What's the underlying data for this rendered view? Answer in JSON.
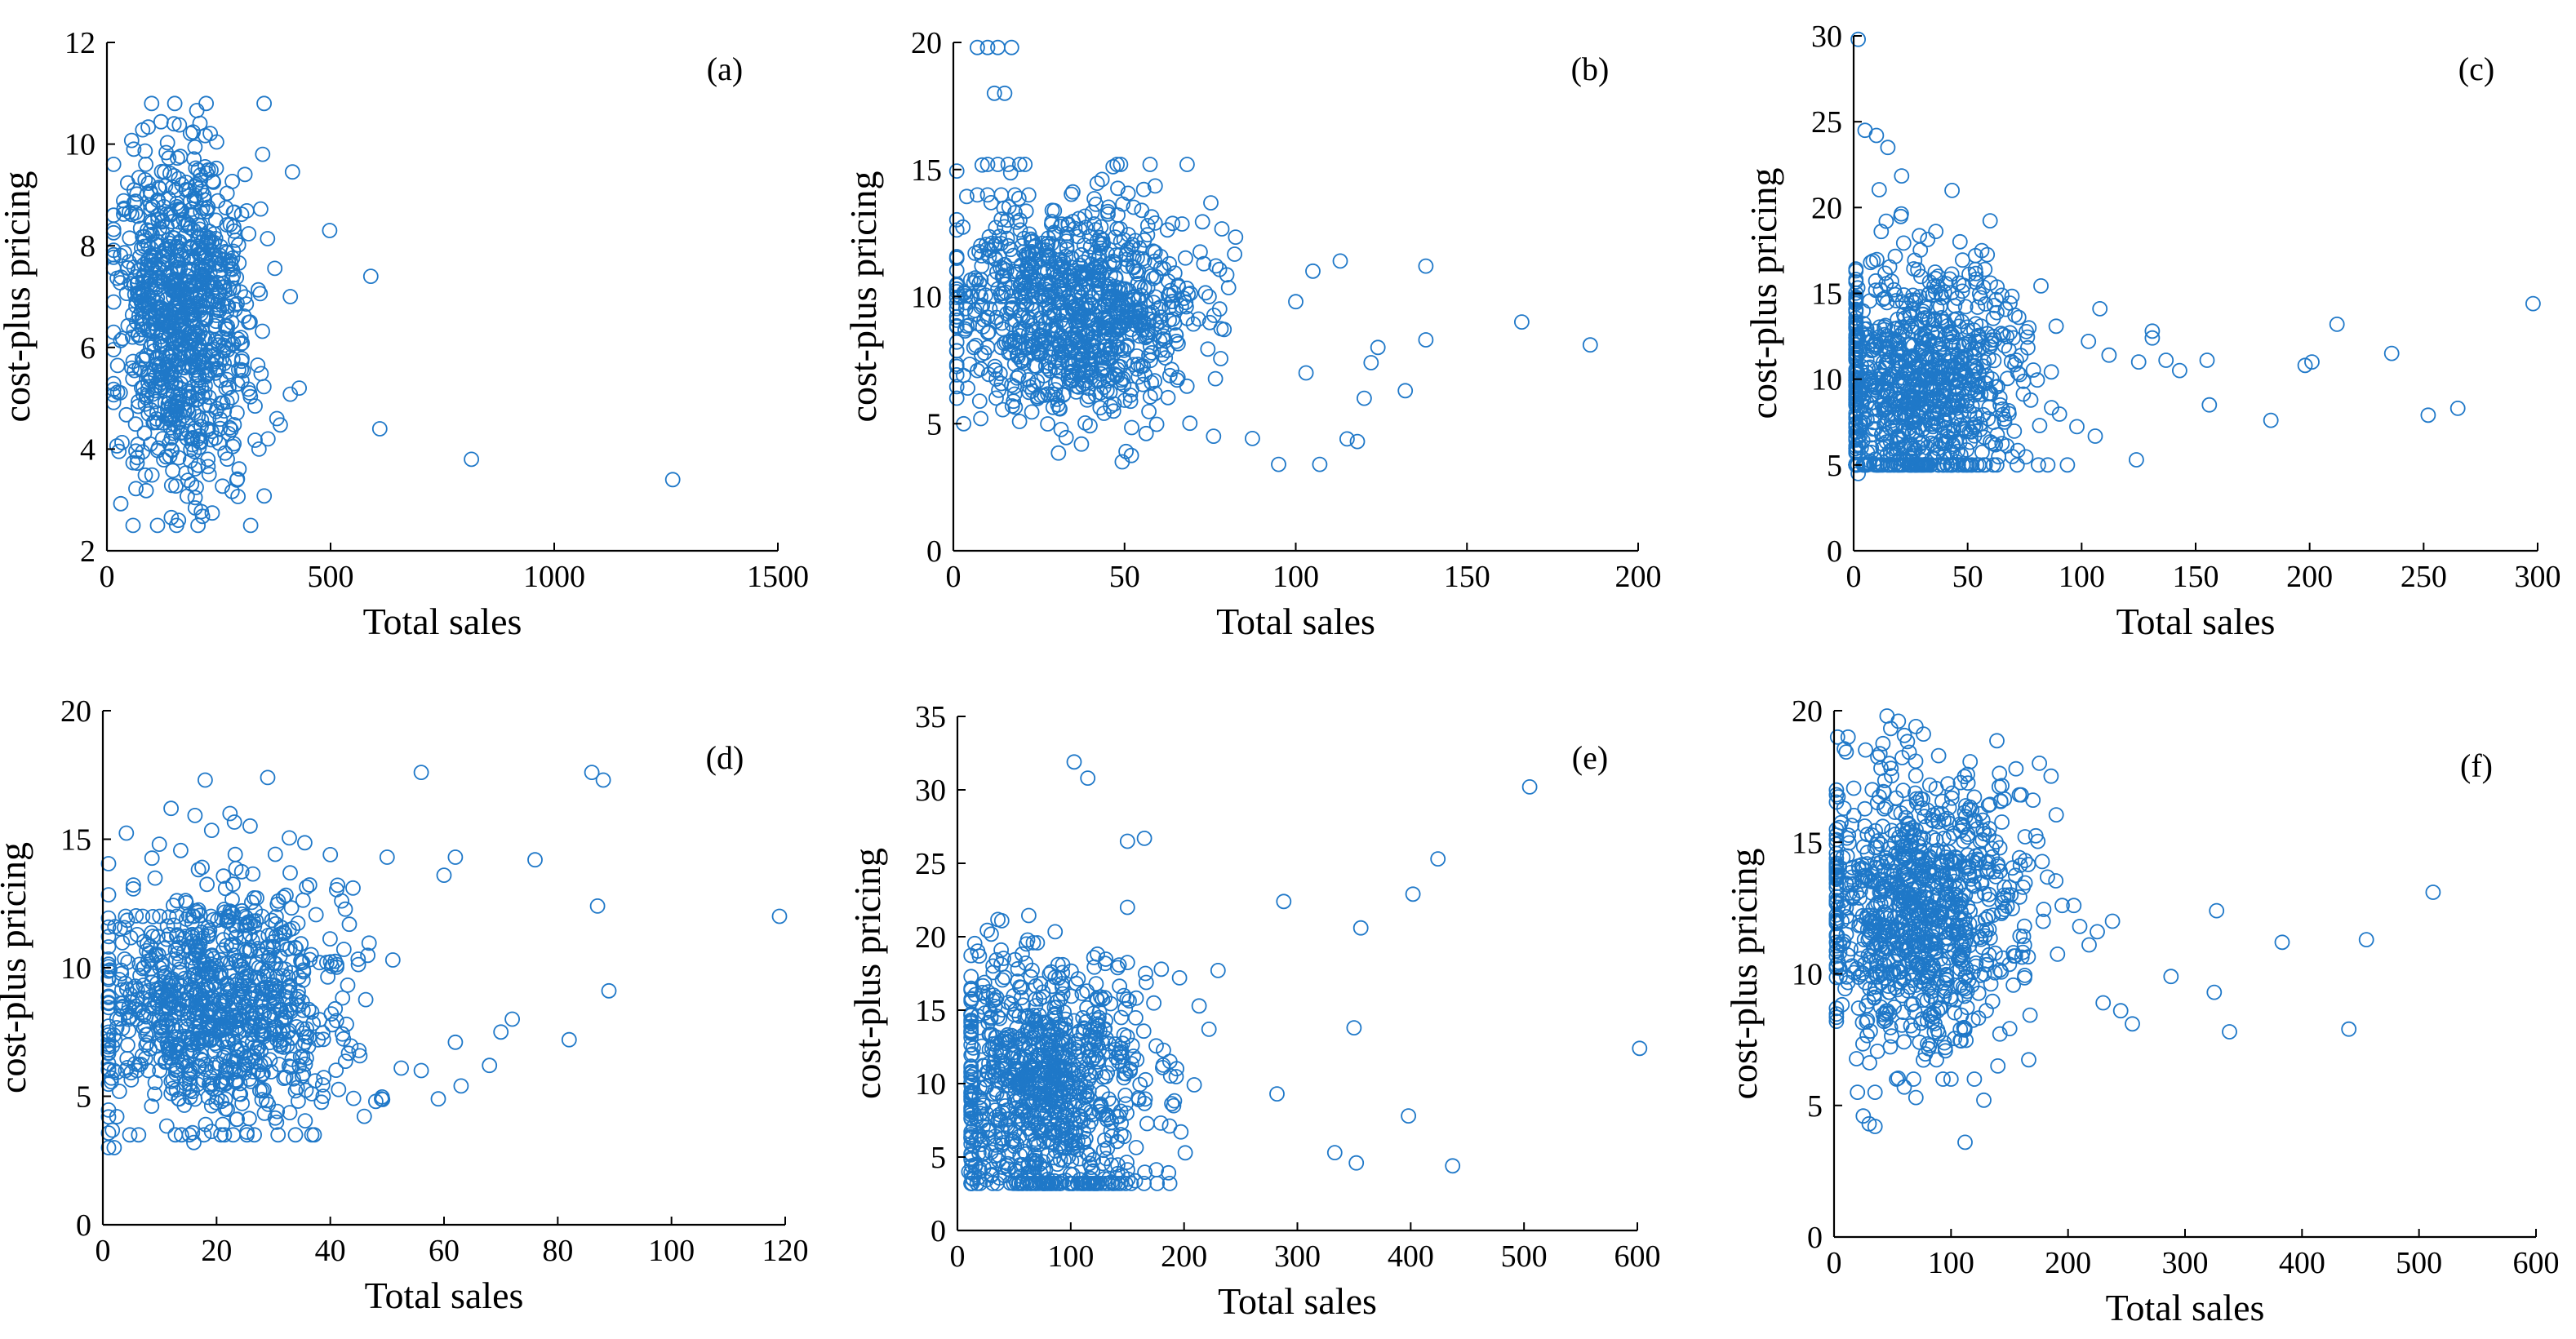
{
  "figure": {
    "marker_color": "#1f78c8",
    "axis_color": "#000000"
  },
  "chart_data": [
    {
      "type": "scatter",
      "label": "(a)",
      "xlabel": "Total sales",
      "ylabel": "cost-plus pricing",
      "xlim": [
        0,
        1500
      ],
      "ylim": [
        2,
        12
      ],
      "xticks": [
        0,
        500,
        1000,
        1500
      ],
      "yticks": [
        2,
        4,
        6,
        8,
        10,
        12
      ],
      "xtick_labels": [
        "0",
        "500",
        "1000",
        "1500"
      ],
      "ytick_labels": [
        "2",
        "4",
        "6",
        "8",
        "10",
        "12"
      ],
      "cluster": {
        "n": 950,
        "x_center": 170,
        "x_spread": 75,
        "x_min": 15,
        "x_max": 420,
        "y_center": 6.5,
        "y_spread": 1.6,
        "y_min": 2.5,
        "y_max": 10.8
      },
      "points": [
        [
          498,
          8.3
        ],
        [
          590,
          7.4
        ],
        [
          610,
          4.4
        ],
        [
          815,
          3.8
        ],
        [
          1265,
          3.4
        ],
        [
          430,
          5.2
        ],
        [
          410,
          7.0
        ],
        [
          100,
          10.8
        ],
        [
          150,
          10.4
        ],
        [
          60,
          9.9
        ],
        [
          360,
          4.2
        ],
        [
          340,
          4.0
        ],
        [
          320,
          6.5
        ],
        [
          380,
          4.6
        ],
        [
          160,
          2.6
        ]
      ]
    },
    {
      "type": "scatter",
      "label": "(b)",
      "xlabel": "Total sales",
      "ylabel": "cost-plus pricing",
      "xlim": [
        0,
        200
      ],
      "ylim": [
        0,
        20
      ],
      "xticks": [
        0,
        50,
        100,
        150,
        200
      ],
      "yticks": [
        0,
        5,
        10,
        15,
        20
      ],
      "xtick_labels": [
        "0",
        "50",
        "100",
        "150",
        "200"
      ],
      "ytick_labels": [
        "0",
        "5",
        "10",
        "15",
        "20"
      ],
      "cluster": {
        "n": 950,
        "x_center": 35,
        "x_spread": 18,
        "x_min": 1,
        "x_max": 95,
        "y_center": 9.5,
        "y_spread": 2.2,
        "y_min": 3.5,
        "y_max": 15.2
      },
      "points": [
        [
          7,
          19.8
        ],
        [
          10,
          19.8
        ],
        [
          13,
          19.8
        ],
        [
          17,
          19.8
        ],
        [
          12,
          18.0
        ],
        [
          15,
          18.0
        ],
        [
          10,
          15.2
        ],
        [
          13,
          15.2
        ],
        [
          16,
          15.2
        ],
        [
          7,
          14.0
        ],
        [
          10,
          14.0
        ],
        [
          14,
          14.0
        ],
        [
          18,
          14.0
        ],
        [
          22,
          14.0
        ],
        [
          8,
          12.0
        ],
        [
          12,
          12.0
        ],
        [
          16,
          12.0
        ],
        [
          20,
          12.0
        ],
        [
          24,
          12.0
        ],
        [
          2,
          10.0
        ],
        [
          5,
          10.0
        ],
        [
          8,
          10.0
        ],
        [
          11,
          10.0
        ],
        [
          14,
          10.0
        ],
        [
          17,
          10.0
        ],
        [
          20,
          10.0
        ],
        [
          23,
          10.0
        ],
        [
          26,
          10.0
        ],
        [
          29,
          10.0
        ],
        [
          6,
          8.0
        ],
        [
          10,
          8.0
        ],
        [
          14,
          8.0
        ],
        [
          18,
          8.0
        ],
        [
          22,
          8.0
        ],
        [
          166,
          9.0
        ],
        [
          186,
          8.1
        ],
        [
          138,
          11.2
        ],
        [
          138,
          8.3
        ],
        [
          132,
          6.3
        ],
        [
          113,
          11.4
        ],
        [
          115,
          4.4
        ],
        [
          118,
          4.3
        ],
        [
          107,
          3.4
        ],
        [
          95,
          3.4
        ],
        [
          122,
          7.4
        ],
        [
          124,
          8.0
        ],
        [
          120,
          6.0
        ],
        [
          103,
          7.0
        ],
        [
          100,
          9.8
        ],
        [
          105,
          11.0
        ],
        [
          3,
          5.0
        ],
        [
          8,
          5.2
        ]
      ]
    },
    {
      "type": "scatter",
      "label": "(c)",
      "xlabel": "Total sales",
      "ylabel": "cost-plus pricing",
      "xlim": [
        0,
        300
      ],
      "ylim": [
        0,
        30
      ],
      "xticks": [
        0,
        50,
        100,
        150,
        200,
        250,
        300
      ],
      "yticks": [
        0,
        5,
        10,
        15,
        20,
        25,
        30
      ],
      "xtick_labels": [
        "0",
        "50",
        "100",
        "150",
        "200",
        "250",
        "300"
      ],
      "ytick_labels": [
        "0",
        "5",
        "10",
        "15",
        "20",
        "25",
        "30"
      ],
      "cluster": {
        "n": 950,
        "x_center": 30,
        "x_spread": 22,
        "x_min": 1,
        "x_max": 110,
        "y_center": 9.5,
        "y_spread": 3.5,
        "y_min": 5.0,
        "y_max": 25.0
      },
      "points": [
        [
          2,
          29.8
        ],
        [
          298,
          14.4
        ],
        [
          265,
          8.3
        ],
        [
          252,
          7.9
        ],
        [
          236,
          11.5
        ],
        [
          212,
          13.2
        ],
        [
          201,
          11.0
        ],
        [
          198,
          10.8
        ],
        [
          183,
          7.6
        ],
        [
          156,
          8.5
        ],
        [
          155,
          11.1
        ],
        [
          143,
          10.5
        ],
        [
          131,
          12.4
        ],
        [
          131,
          12.8
        ],
        [
          124,
          5.3
        ],
        [
          125,
          11.0
        ],
        [
          137,
          11.1
        ],
        [
          112,
          11.4
        ],
        [
          108,
          14.1
        ],
        [
          103,
          12.2
        ],
        [
          2,
          4.5
        ],
        [
          5,
          24.5
        ],
        [
          10,
          24.2
        ],
        [
          15,
          23.5
        ]
      ]
    },
    {
      "type": "scatter",
      "label": "(d)",
      "xlabel": "Total sales",
      "ylabel": "cost-plus pricing",
      "xlim": [
        0,
        120
      ],
      "ylim": [
        0,
        20
      ],
      "xticks": [
        0,
        20,
        40,
        60,
        80,
        100,
        120
      ],
      "yticks": [
        0,
        5,
        10,
        15,
        20
      ],
      "xtick_labels": [
        "0",
        "20",
        "40",
        "60",
        "80",
        "100",
        "120"
      ],
      "ytick_labels": [
        "0",
        "5",
        "10",
        "15",
        "20"
      ],
      "cluster": {
        "n": 950,
        "x_center": 20,
        "x_spread": 11,
        "x_min": 1,
        "x_max": 55,
        "y_center": 8.5,
        "y_spread": 2.3,
        "y_min": 3.5,
        "y_max": 16.0
      },
      "points": [
        [
          1,
          3.0
        ],
        [
          2,
          3.0
        ],
        [
          16,
          3.2
        ],
        [
          119,
          12.0
        ],
        [
          89,
          9.1
        ],
        [
          87,
          12.4
        ],
        [
          88,
          17.3
        ],
        [
          86,
          17.6
        ],
        [
          82,
          7.2
        ],
        [
          76,
          14.2
        ],
        [
          72,
          8.0
        ],
        [
          70,
          7.5
        ],
        [
          68,
          6.2
        ],
        [
          62,
          14.3
        ],
        [
          60,
          13.6
        ],
        [
          63,
          5.4
        ],
        [
          62,
          7.1
        ],
        [
          59,
          4.9
        ],
        [
          56,
          17.6
        ],
        [
          56,
          6.0
        ],
        [
          50,
          14.3
        ],
        [
          51,
          10.3
        ],
        [
          48,
          4.8
        ],
        [
          49,
          4.9
        ],
        [
          44,
          13.1
        ],
        [
          42,
          12.6
        ],
        [
          40,
          14.4
        ],
        [
          29,
          17.4
        ],
        [
          18,
          17.3
        ],
        [
          12,
          16.2
        ],
        [
          2,
          6.0
        ],
        [
          4,
          6.0
        ],
        [
          6,
          6.0
        ],
        [
          8,
          6.0
        ],
        [
          10,
          6.0
        ],
        [
          3,
          8.0
        ],
        [
          6,
          8.0
        ],
        [
          9,
          8.0
        ],
        [
          12,
          8.0
        ],
        [
          15,
          8.0
        ],
        [
          4,
          12.0
        ],
        [
          7,
          12.0
        ],
        [
          10,
          12.0
        ],
        [
          13,
          12.0
        ],
        [
          16,
          12.0
        ],
        [
          19,
          12.0
        ],
        [
          22,
          12.0
        ],
        [
          25,
          12.0
        ],
        [
          28,
          12.0
        ]
      ]
    },
    {
      "type": "scatter",
      "label": "(e)",
      "xlabel": "Total sales",
      "ylabel": "cost-plus pricing",
      "xlim": [
        0,
        600
      ],
      "ylim": [
        0,
        35
      ],
      "xticks": [
        0,
        100,
        200,
        300,
        400,
        500,
        600
      ],
      "yticks": [
        0,
        5,
        10,
        15,
        20,
        25,
        30,
        35
      ],
      "xtick_labels": [
        "0",
        "100",
        "200",
        "300",
        "400",
        "500",
        "600"
      ],
      "ytick_labels": [
        "0",
        "5",
        "10",
        "15",
        "20",
        "25",
        "30",
        "35"
      ],
      "cluster": {
        "n": 950,
        "x_center": 75,
        "x_spread": 45,
        "x_min": 12,
        "x_max": 230,
        "y_center": 9.5,
        "y_spread": 4.5,
        "y_min": 3.2,
        "y_max": 26.0
      },
      "points": [
        [
          103,
          31.9
        ],
        [
          115,
          30.8
        ],
        [
          505,
          30.2
        ],
        [
          424,
          25.3
        ],
        [
          402,
          22.9
        ],
        [
          356,
          20.6
        ],
        [
          288,
          22.4
        ],
        [
          350,
          13.8
        ],
        [
          398,
          7.8
        ],
        [
          282,
          9.3
        ],
        [
          333,
          5.3
        ],
        [
          352,
          4.6
        ],
        [
          437,
          4.4
        ],
        [
          602,
          12.4
        ],
        [
          230,
          17.7
        ],
        [
          222,
          13.7
        ],
        [
          196,
          17.2
        ],
        [
          150,
          26.5
        ],
        [
          165,
          26.7
        ],
        [
          150,
          22.0
        ],
        [
          10,
          4.0
        ],
        [
          15,
          3.8
        ],
        [
          20,
          4.0
        ]
      ]
    },
    {
      "type": "scatter",
      "label": "(f)",
      "xlabel": "Total sales",
      "ylabel": "cost-plus pricing",
      "xlim": [
        0,
        600
      ],
      "ylim": [
        0,
        20
      ],
      "xticks": [
        0,
        100,
        200,
        300,
        400,
        500,
        600
      ],
      "yticks": [
        0,
        5,
        10,
        15,
        20
      ],
      "xtick_labels": [
        "0",
        "100",
        "200",
        "300",
        "400",
        "500",
        "600"
      ],
      "ytick_labels": [
        "0",
        "5",
        "10",
        "15",
        "20"
      ],
      "cluster": {
        "n": 950,
        "x_center": 70,
        "x_spread": 45,
        "x_min": 2,
        "x_max": 210,
        "y_center": 12.5,
        "y_spread": 2.5,
        "y_min": 6.0,
        "y_max": 19.8
      },
      "points": [
        [
          512,
          13.1
        ],
        [
          455,
          11.3
        ],
        [
          440,
          7.9
        ],
        [
          383,
          11.2
        ],
        [
          338,
          7.8
        ],
        [
          327,
          12.4
        ],
        [
          325,
          9.3
        ],
        [
          288,
          9.9
        ],
        [
          255,
          8.1
        ],
        [
          245,
          8.6
        ],
        [
          238,
          12.0
        ],
        [
          230,
          8.9
        ],
        [
          225,
          11.6
        ],
        [
          218,
          11.1
        ],
        [
          210,
          11.8
        ],
        [
          205,
          12.6
        ],
        [
          195,
          12.6
        ],
        [
          160,
          16.8
        ],
        [
          170,
          16.6
        ],
        [
          150,
          13.3
        ],
        [
          142,
          13.9
        ],
        [
          112,
          3.6
        ],
        [
          30,
          4.3
        ],
        [
          35,
          4.2
        ],
        [
          25,
          4.6
        ],
        [
          20,
          5.5
        ],
        [
          35,
          5.5
        ],
        [
          60,
          5.7
        ],
        [
          70,
          5.3
        ],
        [
          128,
          5.2
        ],
        [
          140,
          6.5
        ],
        [
          100,
          6.0
        ],
        [
          95,
          7.2
        ],
        [
          5,
          10.2
        ],
        [
          3,
          19.0
        ],
        [
          12,
          19.0
        ],
        [
          55,
          19.6
        ],
        [
          70,
          19.4
        ]
      ]
    }
  ]
}
